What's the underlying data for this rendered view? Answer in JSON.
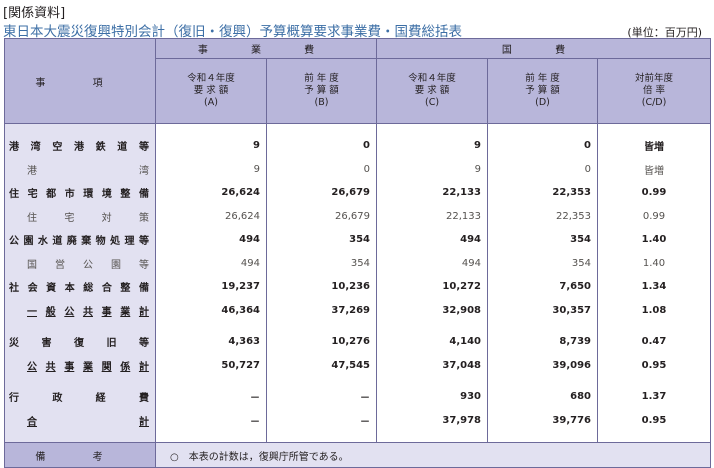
{
  "header": {
    "tag": "[関係資料]",
    "title": "東日本大震災復興特別会計（復旧・復興）予算概算要求事業費・国費総括表",
    "unit": "(単位：百万円)"
  },
  "table": {
    "item_header": "事 項",
    "group_jigyo": "事 業 費",
    "group_kokuhi": "国 費",
    "columns": [
      [
        "令和４年度",
        "要 求 額",
        "(A)"
      ],
      [
        "前 年 度",
        "予 算 額",
        "(B)"
      ],
      [
        "令和４年度",
        "要 求 額",
        "(C)"
      ],
      [
        "前 年 度",
        "予 算 額",
        "(D)"
      ],
      [
        "対前年度",
        "倍 率",
        "(C/D)"
      ]
    ],
    "rows": [
      {
        "label": "港湾空港鉄道等",
        "a": "9",
        "b": "0",
        "c": "9",
        "d": "0",
        "ratio": "皆増"
      },
      {
        "label": "港湾",
        "a": "9",
        "b": "0",
        "c": "9",
        "d": "0",
        "ratio": "皆増"
      },
      {
        "label": "住宅都市環境整備",
        "a": "26,624",
        "b": "26,679",
        "c": "22,133",
        "d": "22,353",
        "ratio": "0.99"
      },
      {
        "label": "住宅対策",
        "a": "26,624",
        "b": "26,679",
        "c": "22,133",
        "d": "22,353",
        "ratio": "0.99"
      },
      {
        "label": "公園水道廃棄物処理等",
        "a": "494",
        "b": "354",
        "c": "494",
        "d": "354",
        "ratio": "1.40"
      },
      {
        "label": "国営公園等",
        "a": "494",
        "b": "354",
        "c": "494",
        "d": "354",
        "ratio": "1.40"
      },
      {
        "label": "社会資本総合整備",
        "a": "19,237",
        "b": "10,236",
        "c": "10,272",
        "d": "7,650",
        "ratio": "1.34"
      },
      {
        "label": "一般公共事業計",
        "a": "46,364",
        "b": "37,269",
        "c": "32,908",
        "d": "30,357",
        "ratio": "1.08"
      },
      {
        "label": "災害復旧等",
        "a": "4,363",
        "b": "10,276",
        "c": "4,140",
        "d": "8,739",
        "ratio": "0.47"
      },
      {
        "label": "公共事業関係計",
        "a": "50,727",
        "b": "47,545",
        "c": "37,048",
        "d": "39,096",
        "ratio": "0.95"
      },
      {
        "label": "行政経費",
        "a": "－",
        "b": "－",
        "c": "930",
        "d": "680",
        "ratio": "1.37"
      },
      {
        "label": "合計",
        "a": "－",
        "b": "－",
        "c": "37,978",
        "d": "39,776",
        "ratio": "0.95"
      }
    ],
    "note_label": "備 考",
    "note_text": "○　本表の計数は，復興庁所管である。"
  }
}
